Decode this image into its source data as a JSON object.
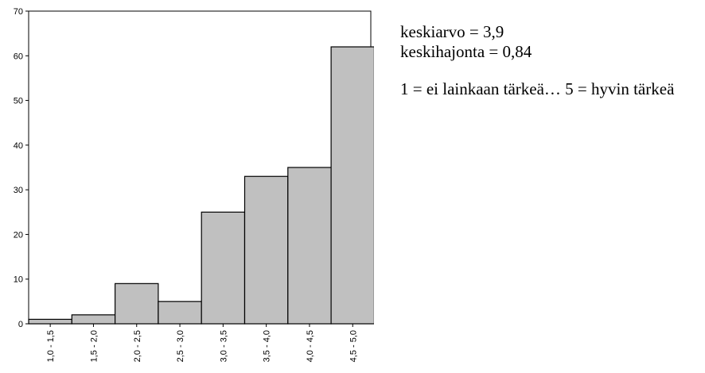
{
  "chart_data": {
    "type": "bar",
    "title": "",
    "xlabel": "",
    "ylabel": "",
    "categories": [
      "1,0 - 1,5",
      "1,5 - 2,0",
      "2,0 - 2,5",
      "2,5 - 3,0",
      "3,0 - 3,5",
      "3,5 - 4,0",
      "4,0 - 4,5",
      "4,5 - 5,0"
    ],
    "values": [
      1,
      2,
      9,
      5,
      25,
      33,
      35,
      62
    ],
    "ylim": [
      0,
      70
    ],
    "yticks": [
      0,
      10,
      20,
      30,
      40,
      50,
      60,
      70
    ],
    "grid": false,
    "legend": "none",
    "bar_color": "#c0c0c0",
    "bar_edge_color": "#000000"
  },
  "annotations": {
    "mean": "keskiarvo = 3,9",
    "std": "keskihajonta = 0,84",
    "scale_note": "1 = ei lainkaan tärkeä… 5 = hyvin tärkeä"
  }
}
